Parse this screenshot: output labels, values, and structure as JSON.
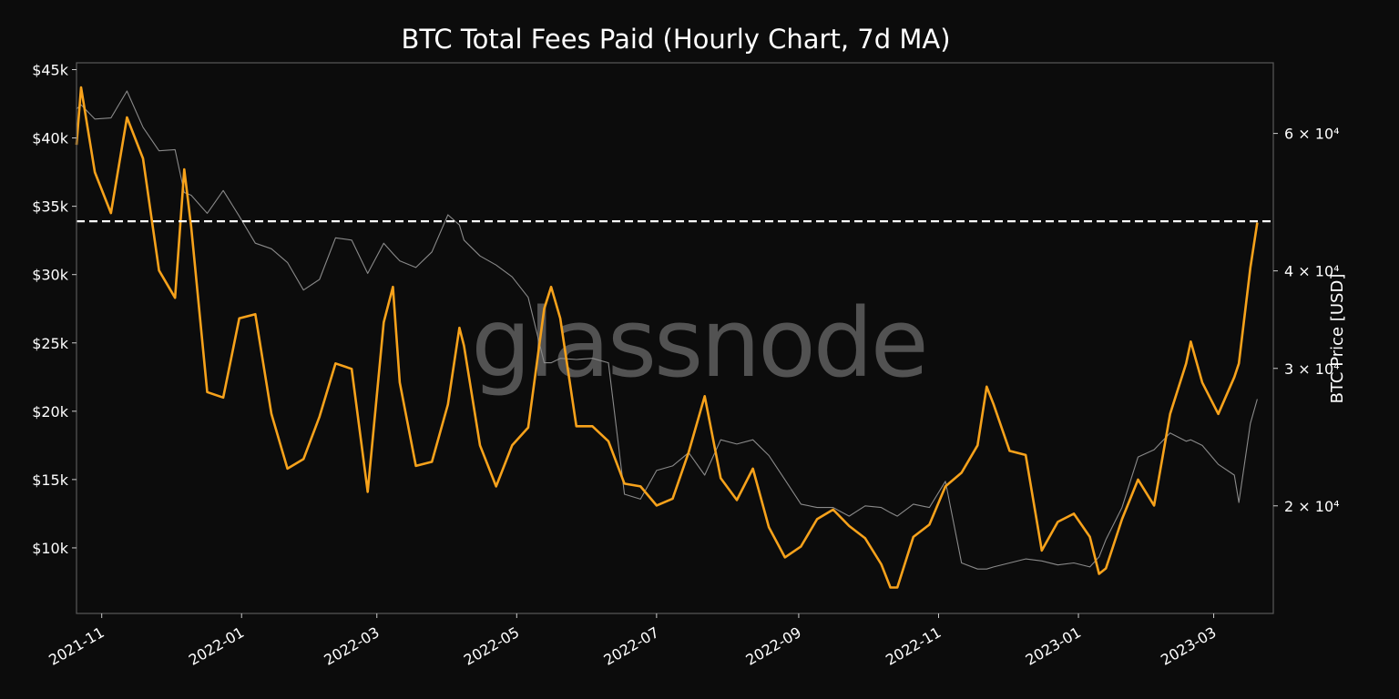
{
  "chart_data": {
    "type": "line",
    "title": "BTC Total Fees Paid (Hourly Chart, 7d MA)",
    "watermark": "glassnode",
    "background": "#0c0c0c",
    "grid": false,
    "xlim": [
      "2021-10-21",
      "2023-03-27"
    ],
    "x_ticks": [
      {
        "date": "2021-11-01",
        "label": "2021-11"
      },
      {
        "date": "2022-01-01",
        "label": "2022-01"
      },
      {
        "date": "2022-03-01",
        "label": "2022-03"
      },
      {
        "date": "2022-05-01",
        "label": "2022-05"
      },
      {
        "date": "2022-07-01",
        "label": "2022-07"
      },
      {
        "date": "2022-09-01",
        "label": "2022-09"
      },
      {
        "date": "2022-11-01",
        "label": "2022-11"
      },
      {
        "date": "2023-01-01",
        "label": "2023-01"
      },
      {
        "date": "2023-03-01",
        "label": "2023-03"
      }
    ],
    "y_left": {
      "ylabel": "",
      "ylim": [
        5200,
        45500
      ],
      "scale": "linear",
      "ticks": [
        {
          "value": 10000,
          "label": "$10k"
        },
        {
          "value": 15000,
          "label": "$15k"
        },
        {
          "value": 20000,
          "label": "$20k"
        },
        {
          "value": 25000,
          "label": "$25k"
        },
        {
          "value": 30000,
          "label": "$30k"
        },
        {
          "value": 35000,
          "label": "$35k"
        },
        {
          "value": 40000,
          "label": "$40k"
        },
        {
          "value": 45000,
          "label": "$45k"
        }
      ]
    },
    "y_right": {
      "ylabel": "BTC Price [USD]",
      "ylim": [
        14560,
        73900
      ],
      "scale": "log",
      "ticks": [
        {
          "value": 20000,
          "label": "2 × 10⁴"
        },
        {
          "value": 30000,
          "label": "3 × 10⁴"
        },
        {
          "value": 40000,
          "label": "4 × 10⁴"
        },
        {
          "value": 60000,
          "label": "6 × 10⁴"
        }
      ]
    },
    "reference_line": {
      "axis": "left",
      "value": 33900,
      "style": "dashed",
      "color": "#ffffff"
    },
    "x": [
      "2021-10-21",
      "2021-10-23",
      "2021-10-29",
      "2021-11-05",
      "2021-11-12",
      "2021-11-19",
      "2021-11-26",
      "2021-12-03",
      "2021-12-07",
      "2021-12-10",
      "2021-12-17",
      "2021-12-24",
      "2021-12-31",
      "2022-01-07",
      "2022-01-14",
      "2022-01-21",
      "2022-01-28",
      "2022-02-04",
      "2022-02-11",
      "2022-02-18",
      "2022-02-25",
      "2022-03-04",
      "2022-03-08",
      "2022-03-11",
      "2022-03-18",
      "2022-03-25",
      "2022-04-01",
      "2022-04-06",
      "2022-04-08",
      "2022-04-15",
      "2022-04-22",
      "2022-04-29",
      "2022-05-06",
      "2022-05-13",
      "2022-05-16",
      "2022-05-20",
      "2022-05-27",
      "2022-06-03",
      "2022-06-10",
      "2022-06-17",
      "2022-06-24",
      "2022-07-01",
      "2022-07-08",
      "2022-07-15",
      "2022-07-22",
      "2022-07-29",
      "2022-08-05",
      "2022-08-12",
      "2022-08-19",
      "2022-08-26",
      "2022-09-02",
      "2022-09-09",
      "2022-09-16",
      "2022-09-23",
      "2022-09-30",
      "2022-10-07",
      "2022-10-11",
      "2022-10-14",
      "2022-10-21",
      "2022-10-28",
      "2022-11-04",
      "2022-11-11",
      "2022-11-18",
      "2022-11-22",
      "2022-11-25",
      "2022-12-02",
      "2022-12-09",
      "2022-12-16",
      "2022-12-23",
      "2022-12-30",
      "2023-01-06",
      "2023-01-10",
      "2023-01-13",
      "2023-01-20",
      "2023-01-27",
      "2023-02-03",
      "2023-02-10",
      "2023-02-17",
      "2023-02-19",
      "2023-02-24",
      "2023-03-03",
      "2023-03-10",
      "2023-03-12",
      "2023-03-17",
      "2023-03-20"
    ],
    "series": [
      {
        "axis": "left",
        "color": "#f7a21b",
        "values": [
          39500,
          43700,
          37500,
          34500,
          41500,
          38500,
          30300,
          28300,
          37700,
          33500,
          21400,
          21000,
          26800,
          27100,
          19800,
          15800,
          16500,
          19600,
          23500,
          23100,
          14100,
          26500,
          29100,
          22100,
          16000,
          16300,
          20500,
          26100,
          24800,
          17500,
          14500,
          17500,
          18800,
          27500,
          29100,
          26800,
          18900,
          18900,
          17800,
          14700,
          14500,
          13100,
          13600,
          17000,
          21100,
          15100,
          13500,
          15800,
          11500,
          9300,
          10100,
          12100,
          12800,
          11600,
          10700,
          8800,
          7100,
          7100,
          10800,
          11700,
          14500,
          15500,
          17500,
          21800,
          20500,
          17100,
          16800,
          9800,
          11900,
          12500,
          10800,
          8100,
          8500,
          12100,
          15000,
          13100,
          19800,
          23500,
          25100,
          22100,
          19800,
          22500,
          23500,
          30500,
          33800
        ]
      },
      {
        "axis": "right",
        "color": "#8a8a8a",
        "values": [
          64500,
          65300,
          62600,
          62800,
          68000,
          61100,
          57000,
          57200,
          50400,
          50000,
          47400,
          50700,
          47000,
          43400,
          42700,
          41000,
          37800,
          39000,
          44100,
          43800,
          39700,
          43400,
          42100,
          41200,
          40400,
          42300,
          47200,
          45800,
          43800,
          41800,
          40700,
          39300,
          37000,
          30500,
          30500,
          30900,
          30800,
          30900,
          30500,
          20700,
          20400,
          22200,
          22500,
          23400,
          21900,
          24300,
          24000,
          24300,
          23200,
          21600,
          20100,
          19900,
          19900,
          19400,
          20000,
          19900,
          19600,
          19400,
          20100,
          19900,
          21500,
          16900,
          16600,
          16600,
          16700,
          16900,
          17100,
          17000,
          16800,
          16900,
          16700,
          17200,
          18100,
          19900,
          23100,
          23600,
          24800,
          24200,
          24300,
          23900,
          22600,
          21900,
          20200,
          25500,
          27400
        ]
      }
    ]
  }
}
